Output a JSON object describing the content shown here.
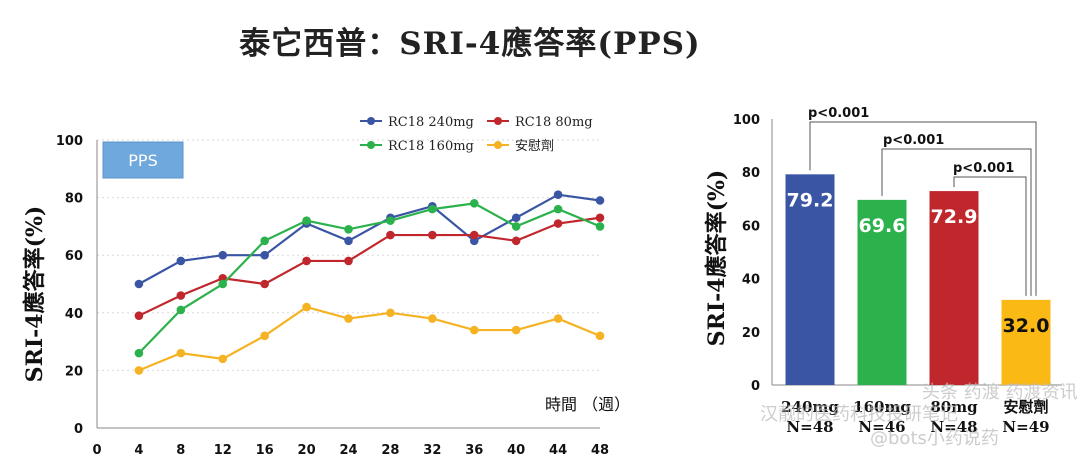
{
  "title": "泰它西普：SRI-4應答率(PPS)",
  "badge": "PPS",
  "watermark": {
    "line1": "汉靓的医药科技投研笔记",
    "line2": "@bots小药说药",
    "line3": "头条 药渡 药渡资讯 医药汇"
  },
  "chart_data": [
    {
      "type": "line",
      "title": "",
      "xlabel": "時間 （週）",
      "ylabel": "SRI-4應答率(%)",
      "x": [
        0,
        4,
        8,
        12,
        16,
        20,
        24,
        28,
        32,
        36,
        40,
        44,
        48
      ],
      "ylim": [
        0,
        100
      ],
      "yticks": [
        0,
        20,
        40,
        60,
        80,
        100
      ],
      "legend_position": "top",
      "series": [
        {
          "name": "RC18 240mg",
          "color": "#3a55a4",
          "x": [
            4,
            8,
            12,
            16,
            20,
            24,
            28,
            32,
            36,
            40,
            44,
            48
          ],
          "values": [
            50,
            58,
            60,
            60,
            71,
            65,
            73,
            77,
            65,
            73,
            81,
            79
          ]
        },
        {
          "name": "RC18 80mg",
          "color": "#c0272d",
          "x": [
            4,
            8,
            12,
            16,
            20,
            24,
            28,
            32,
            36,
            40,
            44,
            48
          ],
          "values": [
            39,
            46,
            52,
            50,
            58,
            58,
            67,
            67,
            67,
            65,
            71,
            73
          ]
        },
        {
          "name": "RC18 160mg",
          "color": "#2bb24c",
          "x": [
            4,
            8,
            12,
            16,
            20,
            24,
            28,
            32,
            36,
            40,
            44,
            48
          ],
          "values": [
            26,
            41,
            50,
            65,
            72,
            69,
            72,
            76,
            78,
            70,
            76,
            70
          ]
        },
        {
          "name": "安慰劑",
          "color": "#f5b223",
          "x": [
            4,
            8,
            12,
            16,
            20,
            24,
            28,
            32,
            36,
            40,
            44,
            48
          ],
          "values": [
            20,
            26,
            24,
            32,
            42,
            38,
            40,
            38,
            34,
            34,
            38,
            32
          ]
        }
      ]
    },
    {
      "type": "bar",
      "ylabel": "SRI-4應答率(%)",
      "ylim": [
        0,
        100
      ],
      "yticks": [
        0,
        20,
        40,
        60,
        80,
        100
      ],
      "categories": [
        "240mg",
        "160mg",
        "80mg",
        "安慰劑"
      ],
      "category_labels": [
        {
          "line1": "240mg",
          "line2": "N=48"
        },
        {
          "line1": "160mg",
          "line2": "N=46"
        },
        {
          "line1": "80mg",
          "line2": "N=48"
        },
        {
          "line1": "安慰劑",
          "line2": "N=49"
        }
      ],
      "values": [
        79.2,
        69.6,
        72.9,
        32.0
      ],
      "value_labels": [
        "79.2",
        "69.6",
        "72.9",
        "32.0"
      ],
      "colors": [
        "#3a55a4",
        "#2bb24c",
        "#c0272d",
        "#fbb916"
      ],
      "annotations": [
        {
          "text": "p<0.001",
          "from": 0,
          "to": 3
        },
        {
          "text": "p<0.001",
          "from": 1,
          "to": 3
        },
        {
          "text": "p<0.001",
          "from": 2,
          "to": 3
        }
      ]
    }
  ]
}
